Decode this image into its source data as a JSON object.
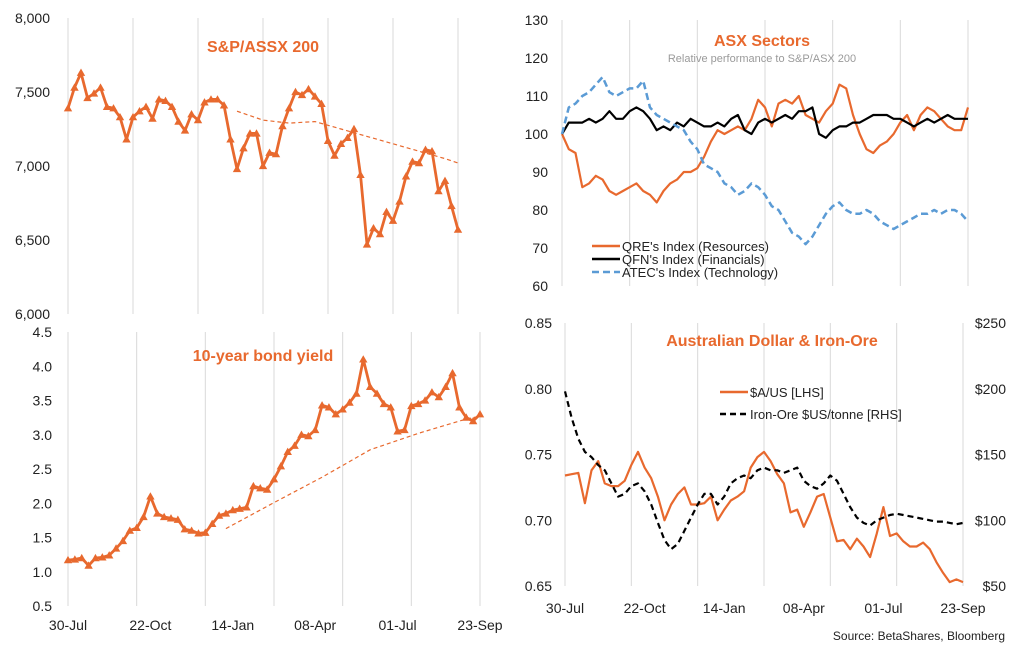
{
  "colors": {
    "orange": "#E8692E",
    "black": "#000000",
    "blue": "#5B9BD5",
    "grid": "#D9D9D9"
  },
  "source": "Source: BetaShares, Bloomberg",
  "chart_data": [
    {
      "id": "sp_asx",
      "type": "line",
      "title": "S&P/ASSX 200",
      "ylim": [
        6000,
        8000
      ],
      "yticks": [
        "6,000",
        "6,500",
        "7,000",
        "7,500",
        "8,000"
      ],
      "xlim": [
        0,
        60
      ],
      "xticks": [
        "30-Jul",
        "22-Oct",
        "14-Jan",
        "08-Apr",
        "01-Jul",
        "23-Sep"
      ],
      "grid": "vertical",
      "series": [
        {
          "style": "orange-triangles",
          "values": [
            7390,
            7530,
            7630,
            7460,
            7490,
            7530,
            7400,
            7390,
            7330,
            7180,
            7330,
            7370,
            7400,
            7320,
            7450,
            7440,
            7400,
            7300,
            7240,
            7350,
            7310,
            7430,
            7450,
            7450,
            7410,
            7180,
            6980,
            7120,
            7220,
            7220,
            7000,
            7090,
            7080,
            7270,
            7390,
            7500,
            7480,
            7520,
            7470,
            7420,
            7170,
            7070,
            7150,
            7190,
            7250,
            6940,
            6470,
            6580,
            6540,
            6690,
            6630,
            6760,
            6930,
            7030,
            7020,
            7110,
            7100,
            6830,
            6900,
            6730,
            6570
          ]
        },
        {
          "style": "orange-dashed-thin",
          "x": [
            26,
            30,
            34,
            38,
            42,
            46,
            50,
            54,
            58,
            60
          ],
          "values": [
            7370,
            7310,
            7290,
            7300,
            7250,
            7200,
            7150,
            7100,
            7050,
            7020
          ]
        }
      ]
    },
    {
      "id": "bond",
      "type": "line",
      "title": "10-year bond yield",
      "ylim": [
        0.5,
        4.5
      ],
      "yticks": [
        "0.5",
        "1.0",
        "1.5",
        "2.0",
        "2.5",
        "3.0",
        "3.5",
        "4.0",
        "4.5"
      ],
      "xlim": [
        0,
        60
      ],
      "xticks": [
        "30-Jul",
        "22-Oct",
        "14-Jan",
        "08-Apr",
        "01-Jul",
        "23-Sep"
      ],
      "grid": "vertical",
      "series": [
        {
          "style": "orange-triangles",
          "values": [
            1.17,
            1.18,
            1.2,
            1.09,
            1.2,
            1.21,
            1.24,
            1.34,
            1.45,
            1.6,
            1.64,
            1.8,
            2.1,
            1.85,
            1.8,
            1.78,
            1.76,
            1.62,
            1.6,
            1.56,
            1.57,
            1.7,
            1.82,
            1.85,
            1.9,
            1.92,
            1.94,
            2.25,
            2.22,
            2.2,
            2.35,
            2.54,
            2.75,
            2.84,
            3.0,
            2.98,
            3.07,
            3.43,
            3.4,
            3.3,
            3.37,
            3.47,
            3.6,
            4.1,
            3.7,
            3.6,
            3.45,
            3.4,
            3.05,
            3.07,
            3.42,
            3.45,
            3.5,
            3.62,
            3.55,
            3.7,
            3.9,
            3.4,
            3.25,
            3.2,
            3.3
          ]
        },
        {
          "style": "orange-dashed-thin",
          "x": [
            23,
            30,
            37,
            44,
            51,
            58,
            60
          ],
          "values": [
            1.63,
            2.01,
            2.38,
            2.78,
            3.02,
            3.23,
            3.27
          ]
        }
      ]
    },
    {
      "id": "sectors",
      "type": "line",
      "title": "ASX Sectors",
      "subtitle": "Relative performance to S&P/ASX 200",
      "ylim": [
        60,
        130
      ],
      "yticks": [
        "60",
        "70",
        "80",
        "90",
        "100",
        "110",
        "120",
        "130"
      ],
      "xlim": [
        0,
        60
      ],
      "grid": "vertical",
      "legend": "bottom-left",
      "series": [
        {
          "name": "QRE's Index (Resources)",
          "style": "orange-solid",
          "values": [
            100,
            96,
            95,
            86,
            87,
            89,
            88,
            85,
            84,
            85,
            86,
            87,
            85,
            84,
            82,
            85,
            87,
            88,
            90,
            90,
            91,
            94,
            98,
            101,
            100,
            101,
            102,
            101,
            104,
            109,
            107,
            102,
            108,
            109,
            108,
            110,
            105,
            104,
            103,
            106,
            108,
            113,
            112,
            105,
            100,
            96,
            95,
            97,
            98,
            100,
            103,
            105,
            101,
            105,
            107,
            106,
            104,
            102,
            101,
            101,
            107
          ]
        },
        {
          "name": "QFN's Index (Financials)",
          "style": "black-solid",
          "values": [
            100,
            103,
            103,
            103,
            104,
            103,
            104,
            106,
            104,
            104,
            106,
            107,
            106,
            104,
            101,
            102,
            101,
            103,
            102,
            104,
            103,
            102,
            102,
            103,
            102,
            104,
            105,
            101,
            100,
            103,
            104,
            103,
            104,
            105,
            104,
            106,
            106,
            107,
            100,
            99,
            101,
            102,
            102,
            103,
            103,
            104,
            105,
            105,
            105,
            104,
            104,
            103,
            102,
            103,
            104,
            103,
            104,
            105,
            104,
            104,
            104
          ]
        },
        {
          "name": "ATEC's Index (Technology)",
          "style": "blue-dashed",
          "values": [
            100,
            107,
            108,
            110,
            111,
            113,
            115,
            111,
            110,
            111,
            112,
            112,
            114,
            107,
            105,
            104,
            103,
            102,
            101,
            98,
            96,
            92,
            91,
            90,
            87,
            86,
            84,
            85,
            87,
            86,
            84,
            81,
            80,
            77,
            74,
            73,
            71,
            73,
            76,
            79,
            81,
            82,
            80,
            79,
            79,
            80,
            79,
            77,
            76,
            75,
            76,
            77,
            78,
            79,
            79,
            80,
            79,
            80,
            80,
            79,
            77
          ]
        }
      ]
    },
    {
      "id": "aud_iron",
      "type": "line",
      "title": "Australian Dollar & Iron-Ore",
      "ylim": [
        0.65,
        0.85
      ],
      "yticks": [
        "0.65",
        "0.70",
        "0.75",
        "0.80",
        "0.85"
      ],
      "y2lim": [
        50,
        250
      ],
      "y2ticks": [
        "$50",
        "$100",
        "$150",
        "$200",
        "$250"
      ],
      "xlim": [
        0,
        60
      ],
      "xticks": [
        "30-Jul",
        "22-Oct",
        "14-Jan",
        "08-Apr",
        "01-Jul",
        "23-Sep"
      ],
      "grid": "vertical",
      "legend": "middle",
      "series": [
        {
          "name": "$A/US [LHS]",
          "style": "orange-solid",
          "axis": "left",
          "values": [
            0.734,
            0.735,
            0.736,
            0.713,
            0.738,
            0.745,
            0.728,
            0.726,
            0.726,
            0.73,
            0.742,
            0.752,
            0.74,
            0.732,
            0.718,
            0.7,
            0.712,
            0.72,
            0.725,
            0.712,
            0.712,
            0.713,
            0.718,
            0.7,
            0.708,
            0.715,
            0.718,
            0.722,
            0.74,
            0.748,
            0.752,
            0.745,
            0.735,
            0.728,
            0.706,
            0.708,
            0.695,
            0.706,
            0.718,
            0.72,
            0.702,
            0.684,
            0.685,
            0.678,
            0.686,
            0.68,
            0.672,
            0.69,
            0.71,
            0.688,
            0.69,
            0.684,
            0.68,
            0.68,
            0.683,
            0.678,
            0.668,
            0.66,
            0.653,
            0.655,
            0.653
          ]
        },
        {
          "name": "Iron-Ore $US/tonne [RHS]",
          "style": "black-dashed",
          "axis": "right",
          "values": [
            198,
            178,
            162,
            152,
            148,
            142,
            138,
            128,
            118,
            120,
            126,
            128,
            122,
            112,
            98,
            85,
            78,
            82,
            92,
            102,
            112,
            120,
            120,
            112,
            118,
            128,
            132,
            134,
            132,
            138,
            140,
            138,
            138,
            136,
            138,
            140,
            130,
            126,
            124,
            128,
            134,
            130,
            120,
            110,
            102,
            98,
            96,
            100,
            102,
            104,
            105,
            104,
            103,
            102,
            101,
            100,
            99,
            99,
            98,
            97,
            98
          ]
        }
      ]
    }
  ]
}
